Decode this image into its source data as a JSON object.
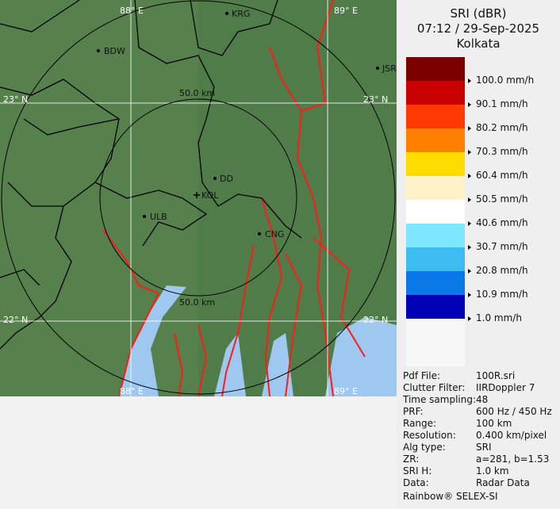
{
  "header": {
    "product": "SRI (dBR)",
    "datetime": "07:12 / 29-Sep-2025",
    "site": "Kolkata"
  },
  "legend": [
    {
      "color": "#7a0000",
      "label": ""
    },
    {
      "color": "#c80000",
      "label": "100.0 mm/h"
    },
    {
      "color": "#ff3a00",
      "label": "90.1 mm/h"
    },
    {
      "color": "#ff8000",
      "label": "80.2 mm/h"
    },
    {
      "color": "#ffdc00",
      "label": "70.3 mm/h"
    },
    {
      "color": "#fff2c8",
      "label": "60.4 mm/h"
    },
    {
      "color": "#ffffff",
      "label": "50.5 mm/h"
    },
    {
      "color": "#7ee6ff",
      "label": "40.6 mm/h"
    },
    {
      "color": "#3cbcf0",
      "label": "30.7 mm/h"
    },
    {
      "color": "#0a78e6",
      "label": "20.8 mm/h"
    },
    {
      "color": "#0000b4",
      "label": "10.9 mm/h"
    },
    {
      "color": "#f7f7f7",
      "label": "1.0 mm/h"
    }
  ],
  "info": [
    {
      "k": "Pdf File:",
      "v": "100R.sri"
    },
    {
      "k": "Clutter Filter:",
      "v": "IIRDoppler 7"
    },
    {
      "k": "Time sampling:",
      "v": "48"
    },
    {
      "k": "PRF:",
      "v": "600 Hz / 450 Hz"
    },
    {
      "k": "Range:",
      "v": "100 km"
    },
    {
      "k": "Resolution:",
      "v": "0.400 km/pixel"
    },
    {
      "k": "Alg type:",
      "v": "SRI"
    },
    {
      "k": "ZR:",
      "v": "a=281, b=1.53"
    },
    {
      "k": "SRI H:",
      "v": "1.0 km"
    },
    {
      "k": "Data:",
      "v": "Radar Data"
    }
  ],
  "footer": "Rainbow® SELEX-SI",
  "map": {
    "grid": {
      "lon_left": "88° E",
      "lon_right": "89° E",
      "lat_top": "23° N",
      "lat_bottom": "22° N"
    },
    "rings": {
      "inner_top": "50.0 km",
      "inner_bottom": "50.0 km"
    },
    "cities": [
      "KRG",
      "BDW",
      "JSR",
      "DD",
      "KOL",
      "ULB",
      "CNG"
    ],
    "colors": {
      "land": "#56804c",
      "water": "#9fc8f0",
      "rivers": "#ff1a1a",
      "boundaries": "#000000"
    }
  }
}
